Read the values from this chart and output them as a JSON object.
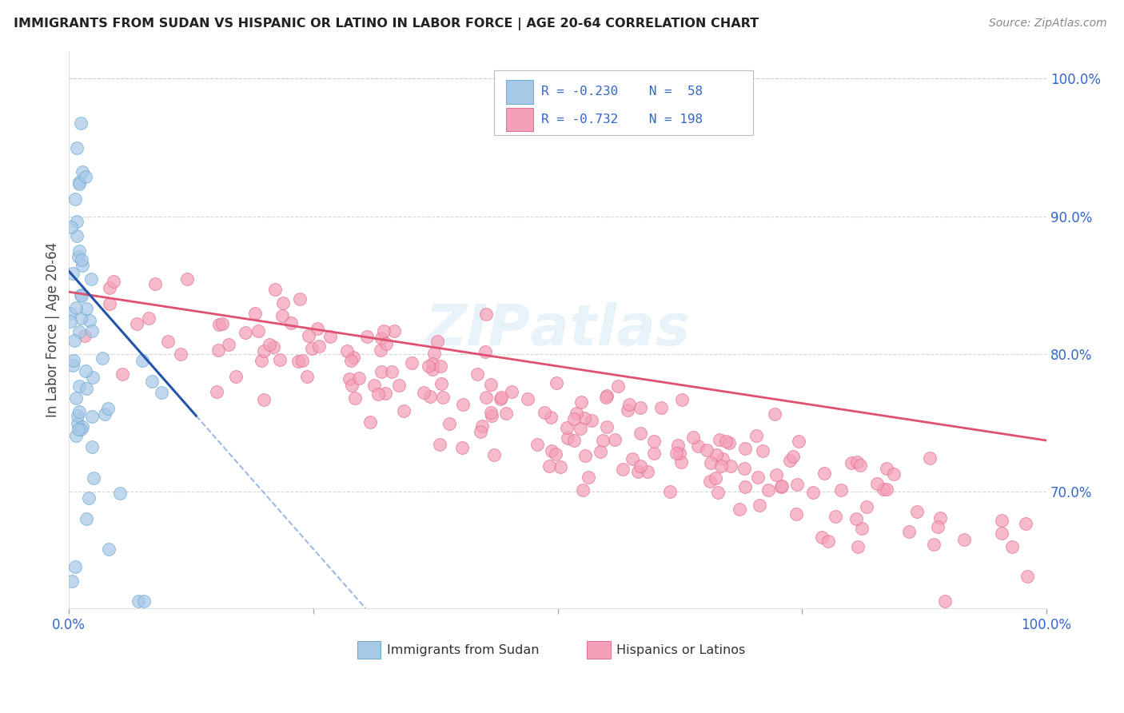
{
  "title": "IMMIGRANTS FROM SUDAN VS HISPANIC OR LATINO IN LABOR FORCE | AGE 20-64 CORRELATION CHART",
  "source": "Source: ZipAtlas.com",
  "ylabel": "In Labor Force | Age 20-64",
  "y_tick_labels_right": [
    "100.0%",
    "90.0%",
    "80.0%",
    "70.0%"
  ],
  "y_tick_positions_right": [
    1.0,
    0.9,
    0.8,
    0.7
  ],
  "xlim": [
    0.0,
    1.0
  ],
  "ylim": [
    0.615,
    1.02
  ],
  "blue_scatter": "#a8c8e8",
  "blue_edge": "#6aaad0",
  "pink_scatter": "#f4a0b8",
  "pink_edge": "#e07090",
  "trendline_blue_solid": "#2255aa",
  "trendline_blue_dash": "#88aadd",
  "trendline_pink": "#e05070",
  "grid_color": "#cccccc",
  "watermark_color": "#d8eaf5",
  "legend_text_color": "#3366cc",
  "tick_color": "#3366cc"
}
